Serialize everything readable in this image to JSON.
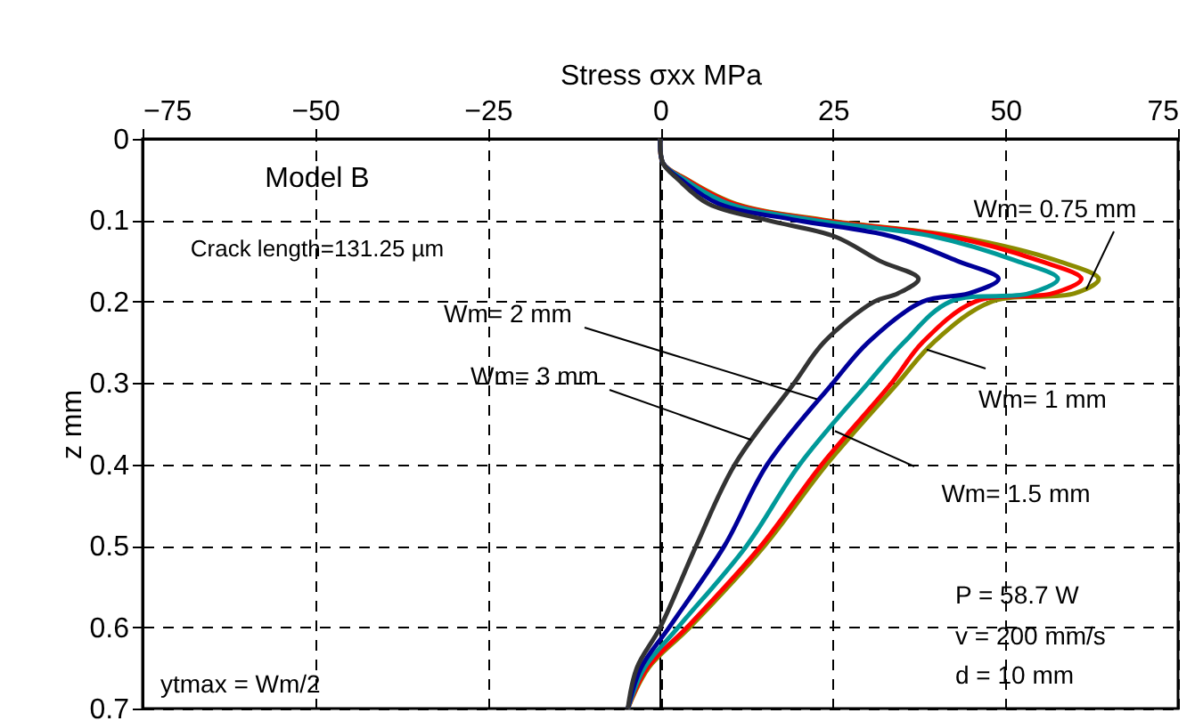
{
  "chart_data": {
    "type": "line",
    "xlabel": "Stress σxx  MPa",
    "ylabel": "z  mm",
    "xlim": [
      -75,
      75
    ],
    "xticks": [
      -75,
      -50,
      -25,
      0,
      25,
      50,
      75
    ],
    "ylim": [
      0.7,
      0
    ],
    "yticks": [
      0,
      0.1,
      0.2,
      0.3,
      0.4,
      0.5,
      0.6,
      0.7
    ],
    "grid": true,
    "line_style": "solid",
    "marker": "none",
    "ref_lines": [
      {
        "axis": "x",
        "value": 0,
        "color": "#000000",
        "line_style": "solid"
      }
    ],
    "series": [
      {
        "color": "#8b8b00",
        "x": [
          0,
          0.4,
          3.9,
          11,
          24,
          43,
          57.6,
          63.5,
          60,
          48,
          39.6,
          34.4,
          24.1,
          15.1,
          4.3,
          -1.7,
          -4.7
        ],
        "values": [
          0,
          0.03,
          0.05,
          0.08,
          0.1,
          0.12,
          0.15,
          0.172,
          0.19,
          0.2,
          0.25,
          0.3,
          0.4,
          0.5,
          0.6,
          0.65,
          0.7
        ]
      },
      {
        "color": "#ff0000",
        "x": [
          0,
          0.4,
          3.8,
          10.7,
          23.5,
          42,
          55,
          61,
          56.8,
          45.6,
          38,
          33.5,
          23.4,
          14.6,
          3.9,
          -1.9,
          -4.7
        ],
        "values": [
          0,
          0.03,
          0.05,
          0.08,
          0.1,
          0.12,
          0.15,
          0.172,
          0.19,
          0.2,
          0.25,
          0.3,
          0.4,
          0.5,
          0.6,
          0.65,
          0.7
        ]
      },
      {
        "color": "#009999",
        "x": [
          0,
          0.4,
          3.5,
          10,
          22.4,
          39.6,
          51.6,
          57.6,
          53.4,
          42,
          35.3,
          30.1,
          20.2,
          12.5,
          2.6,
          -2.3,
          -4.7
        ],
        "values": [
          0,
          0.03,
          0.05,
          0.08,
          0.1,
          0.12,
          0.15,
          0.172,
          0.19,
          0.2,
          0.25,
          0.3,
          0.4,
          0.5,
          0.6,
          0.65,
          0.7
        ]
      },
      {
        "color": "#000099",
        "x": [
          0,
          0.4,
          3,
          8.5,
          19.8,
          33.6,
          43,
          49,
          44.7,
          38,
          30.1,
          25,
          15.5,
          9.3,
          1.3,
          -2.8,
          -4.7
        ],
        "values": [
          0,
          0.03,
          0.05,
          0.08,
          0.1,
          0.12,
          0.15,
          0.172,
          0.19,
          0.2,
          0.25,
          0.3,
          0.4,
          0.5,
          0.6,
          0.65,
          0.7
        ]
      },
      {
        "color": "#333333",
        "x": [
          0,
          0.4,
          2.6,
          7,
          15.5,
          25.3,
          31.8,
          37.4,
          34.4,
          31,
          23.7,
          19.4,
          10.8,
          5.2,
          0,
          -3.4,
          -4.7
        ],
        "values": [
          0,
          0.03,
          0.05,
          0.08,
          0.1,
          0.12,
          0.15,
          0.172,
          0.19,
          0.2,
          0.25,
          0.3,
          0.4,
          0.5,
          0.6,
          0.65,
          0.7
        ]
      }
    ],
    "annotations": [
      {
        "text": "Wm= 0.75 mm",
        "x": 61.7,
        "y": 0.185
      },
      {
        "text": "Wm= 2 mm",
        "x": 22.7,
        "y": 0.32
      },
      {
        "text": "Wm= 3 mm",
        "x": 13.2,
        "y": 0.37
      },
      {
        "text": "Wm= 1 mm",
        "x": 38.6,
        "y": 0.259
      },
      {
        "text": "Wm= 1.5 mm",
        "x": 25.3,
        "y": 0.359
      },
      "Model B",
      "Crack length=131.25 µm",
      "ytmax = Wm/2",
      "P = 58.7 W",
      "v = 200 mm/s",
      "d = 10 mm"
    ]
  }
}
